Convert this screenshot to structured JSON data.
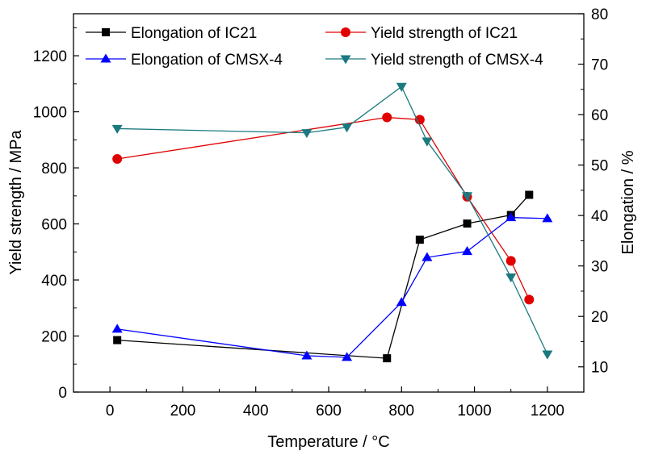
{
  "chart_data": {
    "type": "line",
    "title": "",
    "xlabel": "Temperature / °C",
    "ylabel_left": "Yield strength / MPa",
    "ylabel_right": "Elongation / %",
    "xlim": [
      -100,
      1300
    ],
    "ylim_left": [
      0,
      1350
    ],
    "ylim_right": [
      5,
      80
    ],
    "x_ticks": [
      0,
      200,
      400,
      600,
      800,
      1000,
      1200
    ],
    "y_left_ticks": [
      0,
      200,
      400,
      600,
      800,
      1000,
      1200
    ],
    "y_right_ticks": [
      10,
      20,
      30,
      40,
      50,
      60,
      70,
      80
    ],
    "grid": false,
    "legend_position": "top",
    "series": [
      {
        "name": "Elongation of IC21",
        "axis": "right",
        "color": "#000000",
        "marker": "square",
        "x": [
          20,
          760,
          850,
          980,
          1100,
          1150
        ],
        "y": [
          15.3,
          11.7,
          35.2,
          38.4,
          40.1,
          44.1
        ]
      },
      {
        "name": "Yield strength of IC21",
        "axis": "left",
        "color": "#e00000",
        "marker": "circle",
        "x": [
          20,
          760,
          850,
          980,
          1100,
          1150
        ],
        "y": [
          832,
          980,
          972,
          697,
          468,
          330
        ]
      },
      {
        "name": "Elongation of CMSX-4",
        "axis": "right",
        "color": "#0000ff",
        "marker": "triangle-up",
        "x": [
          20,
          540,
          650,
          800,
          870,
          980,
          1100,
          1200
        ],
        "y": [
          17.5,
          12.2,
          11.9,
          22.8,
          31.7,
          32.9,
          39.6,
          39.4
        ]
      },
      {
        "name": "Yield strength of CMSX-4",
        "axis": "left",
        "color": "#1a7a80",
        "marker": "triangle-down",
        "x": [
          20,
          540,
          650,
          800,
          870,
          980,
          1100,
          1200
        ],
        "y": [
          940,
          925,
          945,
          1090,
          895,
          700,
          410,
          135
        ]
      }
    ]
  }
}
